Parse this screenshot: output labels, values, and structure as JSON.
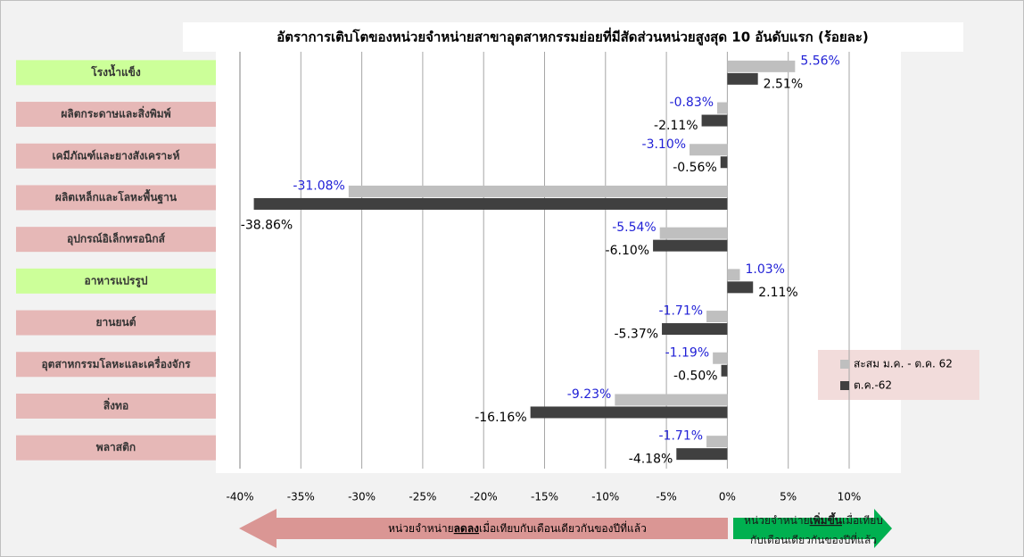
{
  "chart_data": {
    "type": "hbar",
    "title": "อัตราการเติบโตของหน่วยจำหน่ายสาขาอุตสาหกรรมย่อยที่มีสัดส่วนหน่วยสูงสุด 10 อันดับแรก (ร้อยละ)",
    "categories": [
      "โรงน้ำแข็ง",
      "ผลิตกระดาษและสิ่งพิมพ์",
      "เคมีภัณฑ์และยางสังเคราะห์",
      "ผลิตเหล็กและโลหะพื้นฐาน",
      "อุปกรณ์อิเล็กทรอนิกส์",
      "อาหารแปรรูป",
      "ยานยนต์",
      "อุตสาหกรรมโลหะและเครื่องจักร",
      "สิ่งทอ",
      "พลาสติก"
    ],
    "category_colors": [
      "#ccff99",
      "#e6b8b7",
      "#e6b8b7",
      "#e6b8b7",
      "#e6b8b7",
      "#ccff99",
      "#e6b8b7",
      "#e6b8b7",
      "#e6b8b7",
      "#e6b8b7"
    ],
    "series": [
      {
        "name": "สะสม ม.ค. - ต.ค. 62",
        "color": "#bfbfbf",
        "label_color": "#1f1fd6",
        "values": [
          5.56,
          -0.83,
          -3.1,
          -31.08,
          -5.54,
          1.03,
          -1.71,
          -1.19,
          -9.23,
          -1.71
        ],
        "value_labels": [
          "5.56%",
          "-0.83%",
          "-3.10%",
          "-31.08%",
          "-5.54%",
          "1.03%",
          "-1.71%",
          "-1.19%",
          "-9.23%",
          "-1.71%"
        ]
      },
      {
        "name": "ต.ค.-62",
        "color": "#404040",
        "label_color": "#000000",
        "values": [
          2.51,
          -2.11,
          -0.56,
          -38.86,
          -6.1,
          2.11,
          -5.37,
          -0.5,
          -16.16,
          -4.18
        ],
        "value_labels": [
          "2.51%",
          "-2.11%",
          "-0.56%",
          "-38.86%",
          "-6.10%",
          "2.11%",
          "-5.37%",
          "-0.50%",
          "-16.16%",
          "-4.18%"
        ]
      }
    ],
    "xlim": [
      -40,
      10
    ],
    "xticks": [
      {
        "value": -40,
        "label": "-40%"
      },
      {
        "value": -35,
        "label": "-35%"
      },
      {
        "value": -30,
        "label": "-30%"
      },
      {
        "value": -25,
        "label": "-25%"
      },
      {
        "value": -20,
        "label": "-20%"
      },
      {
        "value": -15,
        "label": "-15%"
      },
      {
        "value": -10,
        "label": "-10%"
      },
      {
        "value": -5,
        "label": "-5%"
      },
      {
        "value": 0,
        "label": "0%"
      },
      {
        "value": 5,
        "label": "5%"
      },
      {
        "value": 10,
        "label": "10%"
      }
    ],
    "grid": true,
    "annotations": {
      "decrease": [
        "หน่วยจำหน่าย",
        "ลดลง",
        "เมื่อเทียบกับเดือนเดียวกันของปีที่แล้ว"
      ],
      "increase": [
        "หน่วยจำหน่าย",
        "เพิ่มขึ้น",
        "เมื่อเทียบ",
        "กับเดือนเดียวกันของปีที่แล้ว"
      ]
    }
  }
}
